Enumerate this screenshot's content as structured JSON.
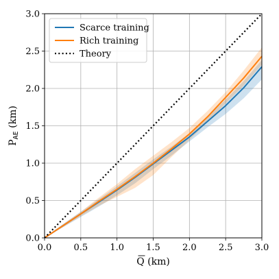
{
  "chart_data": {
    "type": "line",
    "xlabel": "Q (km)",
    "xlabel_overline": "Q",
    "xlabel_unit": " (km)",
    "ylabel_main": "P",
    "ylabel_sub": "AE",
    "ylabel_unit": " (km)",
    "xlim": [
      0,
      3
    ],
    "ylim": [
      0,
      3
    ],
    "xticks": [
      "0.0",
      "0.5",
      "1.0",
      "1.5",
      "2.0",
      "2.5",
      "3.0"
    ],
    "yticks": [
      "0.0",
      "0.5",
      "1.0",
      "1.5",
      "2.0",
      "2.5",
      "3.0"
    ],
    "grid": true,
    "legend_position": "top-left",
    "series": [
      {
        "name": "Scarce training",
        "color": "#1f77b4",
        "style": "solid",
        "x": [
          0,
          0.25,
          0.5,
          0.75,
          1.0,
          1.25,
          1.5,
          1.75,
          2.0,
          2.25,
          2.5,
          2.75,
          3.0
        ],
        "y": [
          0.0,
          0.16,
          0.32,
          0.48,
          0.64,
          0.81,
          0.99,
          1.17,
          1.35,
          1.56,
          1.77,
          2.01,
          2.29
        ],
        "lower": [
          0.0,
          0.14,
          0.28,
          0.42,
          0.57,
          0.73,
          0.92,
          1.1,
          1.29,
          1.48,
          1.66,
          1.87,
          2.12
        ],
        "upper": [
          0.0,
          0.18,
          0.35,
          0.52,
          0.69,
          0.87,
          1.05,
          1.22,
          1.4,
          1.62,
          1.85,
          2.1,
          2.38
        ]
      },
      {
        "name": "Rich training",
        "color": "#ff7f0e",
        "style": "solid",
        "x": [
          0,
          0.25,
          0.5,
          0.75,
          1.0,
          1.25,
          1.5,
          1.75,
          2.0,
          2.25,
          2.5,
          2.75,
          3.0
        ],
        "y": [
          0.0,
          0.16,
          0.32,
          0.49,
          0.65,
          0.82,
          1.0,
          1.19,
          1.39,
          1.62,
          1.88,
          2.14,
          2.43
        ],
        "lower": [
          0.0,
          0.14,
          0.29,
          0.43,
          0.55,
          0.67,
          0.84,
          1.08,
          1.31,
          1.55,
          1.8,
          2.04,
          2.32
        ],
        "upper": [
          0.0,
          0.18,
          0.35,
          0.54,
          0.72,
          0.92,
          1.1,
          1.28,
          1.47,
          1.7,
          1.95,
          2.24,
          2.55
        ]
      },
      {
        "name": "Theory",
        "color": "#000000",
        "style": "dotted",
        "x": [
          0,
          3
        ],
        "y": [
          0,
          3
        ]
      }
    ]
  }
}
